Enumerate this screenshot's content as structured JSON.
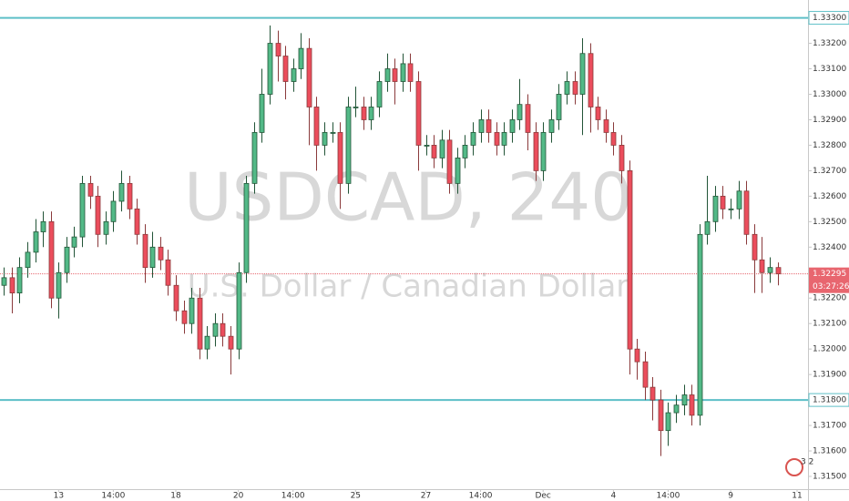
{
  "chart_data": {
    "type": "candlestick",
    "watermark": "USDCAD, 240",
    "watermark_subtitle": "U.S. Dollar / Canadian Dollar",
    "up_color": "#53b987",
    "down_color": "#eb4d5c",
    "xlim": [
      -0.5,
      102.9
    ],
    "ylim": [
      1.3145,
      1.3337
    ],
    "xticks": [
      {
        "value": 7,
        "label": "13"
      },
      {
        "value": 14,
        "label": "14:00"
      },
      {
        "value": 22,
        "label": "18"
      },
      {
        "value": 30,
        "label": "20"
      },
      {
        "value": 37,
        "label": "14:00"
      },
      {
        "value": 45,
        "label": "25"
      },
      {
        "value": 54,
        "label": "27"
      },
      {
        "value": 61,
        "label": "14:00"
      },
      {
        "value": 69,
        "label": "Dec"
      },
      {
        "value": 78,
        "label": "4"
      },
      {
        "value": 85,
        "label": "14:00"
      },
      {
        "value": 93,
        "label": "9"
      },
      {
        "value": 101.5,
        "label": "11"
      }
    ],
    "yticks": [
      {
        "value": 1.315,
        "label": "1.31500"
      },
      {
        "value": 1.316,
        "label": "1.31600"
      },
      {
        "value": 1.317,
        "label": "1.31700"
      },
      {
        "value": 1.319,
        "label": "1.31900"
      },
      {
        "value": 1.32,
        "label": "1.32000"
      },
      {
        "value": 1.321,
        "label": "1.32100"
      },
      {
        "value": 1.322,
        "label": "1.32200"
      },
      {
        "value": 1.324,
        "label": "1.32400"
      },
      {
        "value": 1.325,
        "label": "1.32500"
      },
      {
        "value": 1.326,
        "label": "1.32600"
      },
      {
        "value": 1.327,
        "label": "1.32700"
      },
      {
        "value": 1.328,
        "label": "1.32800"
      },
      {
        "value": 1.329,
        "label": "1.32900"
      },
      {
        "value": 1.33,
        "label": "1.33000"
      },
      {
        "value": 1.331,
        "label": "1.33100"
      },
      {
        "value": 1.332,
        "label": "1.33200"
      }
    ],
    "hlines": [
      {
        "value": 1.333,
        "label": "1.33300",
        "color": "#5dbfc7"
      },
      {
        "value": 1.318,
        "label": "1.31800",
        "color": "#5dbfc7"
      }
    ],
    "last_price": {
      "value": 1.32295,
      "label": "1.32295",
      "countdown": "03:27:26",
      "color": "#e8666f"
    },
    "badge": "3 2",
    "ohlc": [
      [
        1.3225,
        1.3232,
        1.3221,
        1.3228
      ],
      [
        1.3228,
        1.3232,
        1.3214,
        1.3222
      ],
      [
        1.3222,
        1.3236,
        1.3218,
        1.3232
      ],
      [
        1.3232,
        1.3242,
        1.3228,
        1.3238
      ],
      [
        1.3238,
        1.3251,
        1.3234,
        1.3246
      ],
      [
        1.3246,
        1.3254,
        1.324,
        1.325
      ],
      [
        1.325,
        1.3254,
        1.3216,
        1.322
      ],
      [
        1.322,
        1.3234,
        1.3212,
        1.323
      ],
      [
        1.323,
        1.3244,
        1.3226,
        1.324
      ],
      [
        1.324,
        1.3248,
        1.3236,
        1.3244
      ],
      [
        1.3244,
        1.3268,
        1.324,
        1.3265
      ],
      [
        1.3265,
        1.3268,
        1.3255,
        1.326
      ],
      [
        1.326,
        1.3264,
        1.324,
        1.3245
      ],
      [
        1.3245,
        1.3254,
        1.3241,
        1.325
      ],
      [
        1.325,
        1.3262,
        1.3246,
        1.3258
      ],
      [
        1.3258,
        1.327,
        1.3254,
        1.3265
      ],
      [
        1.3265,
        1.3268,
        1.3251,
        1.3255
      ],
      [
        1.3255,
        1.3259,
        1.3241,
        1.3245
      ],
      [
        1.3245,
        1.3249,
        1.3226,
        1.3232
      ],
      [
        1.3232,
        1.3246,
        1.3228,
        1.324
      ],
      [
        1.324,
        1.3244,
        1.3231,
        1.3235
      ],
      [
        1.3235,
        1.3239,
        1.3221,
        1.3225
      ],
      [
        1.3225,
        1.3229,
        1.3211,
        1.3215
      ],
      [
        1.3215,
        1.3219,
        1.3206,
        1.321
      ],
      [
        1.321,
        1.3224,
        1.3206,
        1.322
      ],
      [
        1.322,
        1.3224,
        1.3196,
        1.32
      ],
      [
        1.32,
        1.3209,
        1.3196,
        1.3205
      ],
      [
        1.3205,
        1.3214,
        1.3201,
        1.321
      ],
      [
        1.321,
        1.3214,
        1.3201,
        1.3205
      ],
      [
        1.3205,
        1.3209,
        1.319,
        1.32
      ],
      [
        1.32,
        1.3234,
        1.3196,
        1.323
      ],
      [
        1.323,
        1.3268,
        1.3226,
        1.3265
      ],
      [
        1.3265,
        1.3289,
        1.3261,
        1.3285
      ],
      [
        1.3285,
        1.331,
        1.3281,
        1.33
      ],
      [
        1.33,
        1.3327,
        1.3296,
        1.332
      ],
      [
        1.332,
        1.3325,
        1.3305,
        1.3315
      ],
      [
        1.3315,
        1.3319,
        1.3298,
        1.3305
      ],
      [
        1.3305,
        1.3314,
        1.3301,
        1.331
      ],
      [
        1.331,
        1.3324,
        1.3306,
        1.3318
      ],
      [
        1.3318,
        1.3322,
        1.328,
        1.3295
      ],
      [
        1.3295,
        1.3299,
        1.327,
        1.328
      ],
      [
        1.328,
        1.3289,
        1.3276,
        1.3285
      ],
      [
        1.3285,
        1.3289,
        1.3281,
        1.3285
      ],
      [
        1.3285,
        1.3289,
        1.3255,
        1.3265
      ],
      [
        1.3265,
        1.3299,
        1.3261,
        1.3295
      ],
      [
        1.3295,
        1.3303,
        1.3291,
        1.3295
      ],
      [
        1.3295,
        1.3299,
        1.3286,
        1.329
      ],
      [
        1.329,
        1.3299,
        1.3286,
        1.3295
      ],
      [
        1.3295,
        1.3309,
        1.3291,
        1.3305
      ],
      [
        1.3305,
        1.3316,
        1.3301,
        1.331
      ],
      [
        1.331,
        1.3314,
        1.3296,
        1.3305
      ],
      [
        1.3305,
        1.3316,
        1.3301,
        1.3312
      ],
      [
        1.3312,
        1.3316,
        1.3301,
        1.3305
      ],
      [
        1.3305,
        1.3309,
        1.327,
        1.328
      ],
      [
        1.328,
        1.3284,
        1.3276,
        1.328
      ],
      [
        1.328,
        1.3284,
        1.3271,
        1.3275
      ],
      [
        1.3275,
        1.3286,
        1.3271,
        1.3282
      ],
      [
        1.3282,
        1.3286,
        1.3261,
        1.3265
      ],
      [
        1.3265,
        1.3279,
        1.3261,
        1.3275
      ],
      [
        1.3275,
        1.3284,
        1.3271,
        1.328
      ],
      [
        1.328,
        1.3289,
        1.3276,
        1.3285
      ],
      [
        1.3285,
        1.3294,
        1.3281,
        1.329
      ],
      [
        1.329,
        1.3294,
        1.3281,
        1.3285
      ],
      [
        1.3285,
        1.3289,
        1.3276,
        1.328
      ],
      [
        1.328,
        1.3289,
        1.3276,
        1.3285
      ],
      [
        1.3285,
        1.3294,
        1.3281,
        1.329
      ],
      [
        1.329,
        1.3306,
        1.3286,
        1.3296
      ],
      [
        1.3296,
        1.33,
        1.3278,
        1.3285
      ],
      [
        1.3285,
        1.3289,
        1.3266,
        1.327
      ],
      [
        1.327,
        1.3289,
        1.3266,
        1.3285
      ],
      [
        1.3285,
        1.3294,
        1.3281,
        1.329
      ],
      [
        1.329,
        1.3304,
        1.3286,
        1.33
      ],
      [
        1.33,
        1.3309,
        1.3296,
        1.3305
      ],
      [
        1.3305,
        1.3309,
        1.3296,
        1.33
      ],
      [
        1.33,
        1.3322,
        1.3284,
        1.3316
      ],
      [
        1.3316,
        1.332,
        1.3285,
        1.3295
      ],
      [
        1.3295,
        1.3299,
        1.3286,
        1.329
      ],
      [
        1.329,
        1.3294,
        1.3281,
        1.3285
      ],
      [
        1.3285,
        1.3289,
        1.3276,
        1.328
      ],
      [
        1.328,
        1.3284,
        1.3265,
        1.327
      ],
      [
        1.327,
        1.3274,
        1.319,
        1.32
      ],
      [
        1.32,
        1.3204,
        1.3188,
        1.3195
      ],
      [
        1.3195,
        1.3199,
        1.318,
        1.3185
      ],
      [
        1.3185,
        1.3189,
        1.3172,
        1.318
      ],
      [
        1.318,
        1.3184,
        1.3158,
        1.3168
      ],
      [
        1.3168,
        1.3179,
        1.3162,
        1.3175
      ],
      [
        1.3175,
        1.3182,
        1.3171,
        1.3178
      ],
      [
        1.3178,
        1.3186,
        1.3174,
        1.3182
      ],
      [
        1.3182,
        1.3186,
        1.317,
        1.3174
      ],
      [
        1.3174,
        1.3249,
        1.317,
        1.3245
      ],
      [
        1.3245,
        1.3268,
        1.3241,
        1.325
      ],
      [
        1.325,
        1.3264,
        1.3246,
        1.326
      ],
      [
        1.326,
        1.3264,
        1.3251,
        1.3255
      ],
      [
        1.3255,
        1.3259,
        1.3251,
        1.3255
      ],
      [
        1.3255,
        1.3266,
        1.3251,
        1.3262
      ],
      [
        1.3262,
        1.3266,
        1.3241,
        1.3245
      ],
      [
        1.3245,
        1.3249,
        1.3222,
        1.3235
      ],
      [
        1.3235,
        1.3244,
        1.3222,
        1.323
      ],
      [
        1.323,
        1.3236,
        1.3226,
        1.3232
      ],
      [
        1.3232,
        1.3234,
        1.3225,
        1.32295
      ]
    ]
  }
}
